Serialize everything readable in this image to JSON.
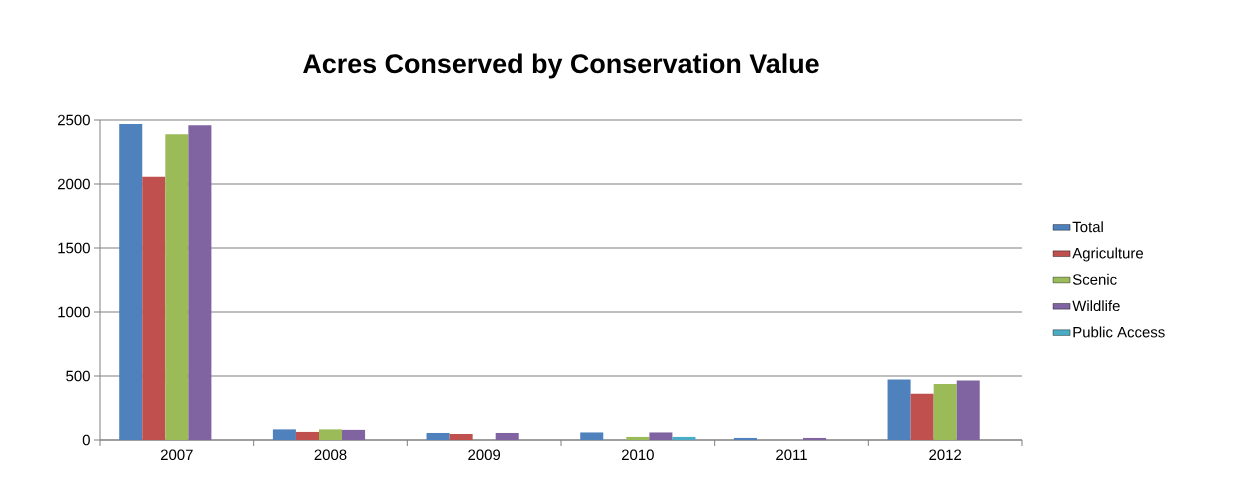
{
  "chart_data": {
    "type": "bar",
    "title": "Acres Conserved by Conservation Value",
    "categories": [
      "2007",
      "2008",
      "2009",
      "2010",
      "2011",
      "2012"
    ],
    "series": [
      {
        "name": "Total",
        "color": "#4f81bd",
        "values": [
          2469,
          83,
          55,
          59,
          16,
          472
        ]
      },
      {
        "name": "Agriculture",
        "color": "#c0504d",
        "values": [
          2056,
          63,
          47,
          0,
          0,
          362
        ]
      },
      {
        "name": "Scenic",
        "color": "#9bbb59",
        "values": [
          2389,
          83,
          null,
          24,
          0,
          437
        ]
      },
      {
        "name": "Wildlife",
        "color": "#8064a2",
        "values": [
          2459,
          79,
          55,
          59,
          16,
          465
        ]
      },
      {
        "name": "Public Access",
        "color": "#4bacc6",
        "values": [
          0,
          0,
          0,
          24,
          0,
          0
        ]
      }
    ],
    "ylim": [
      0,
      2500
    ],
    "yticks": [
      0,
      500,
      1000,
      1500,
      2000,
      2500
    ],
    "grid": "y",
    "legend": "right"
  }
}
